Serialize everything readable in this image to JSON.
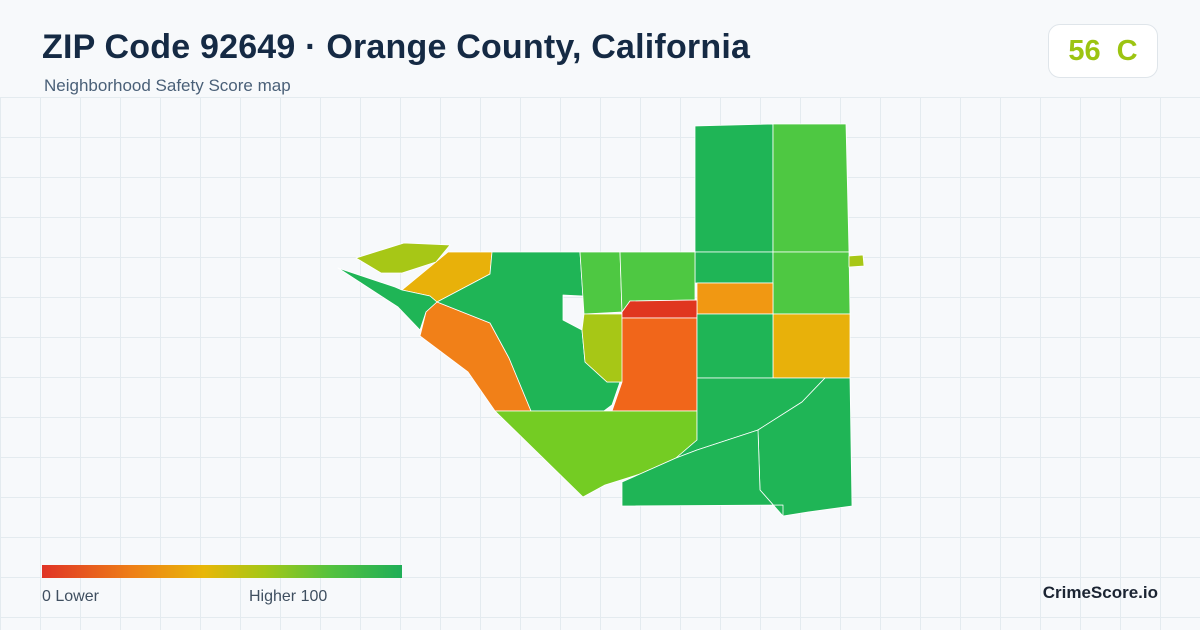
{
  "header": {
    "title": "ZIP Code 92649 · Orange County, California",
    "subtitle": "Neighborhood Safety Score map"
  },
  "score": {
    "value": "56",
    "grade": "C",
    "color": "#9cc411"
  },
  "legend": {
    "min_label": "0  Lower",
    "max_label": "Higher  100",
    "colors": [
      "#e03426",
      "#ee7f17",
      "#e8b708",
      "#a4c716",
      "#54c23e",
      "#1fae57"
    ]
  },
  "brand": "CrimeScore.io",
  "map": {
    "regions": [
      {
        "name": "region-a1",
        "color": "#1fb556"
      },
      {
        "name": "region-a2",
        "color": "#4ec842"
      },
      {
        "name": "region-b1",
        "color": "#1fb556"
      },
      {
        "name": "region-b2",
        "color": "#4ec842"
      },
      {
        "name": "region-c1",
        "color": "#f19812"
      },
      {
        "name": "region-c2",
        "color": "#e8b10a"
      },
      {
        "name": "region-d1",
        "color": "#a7c716"
      },
      {
        "name": "region-d2",
        "color": "#e8b10a"
      },
      {
        "name": "region-d3",
        "color": "#1fb556"
      },
      {
        "name": "region-d4",
        "color": "#74cc23"
      },
      {
        "name": "region-d5",
        "color": "#4ec842"
      },
      {
        "name": "region-e1",
        "color": "#e0361f"
      },
      {
        "name": "region-e2",
        "color": "#f1661a"
      },
      {
        "name": "region-e3",
        "color": "#4ec842"
      },
      {
        "name": "region-f1",
        "color": "#a7c716"
      },
      {
        "name": "region-f2",
        "color": "#1fb556"
      },
      {
        "name": "region-f3",
        "color": "#f18018"
      },
      {
        "name": "region-f4",
        "color": "#1fb556"
      },
      {
        "name": "region-f5",
        "color": "#1fb556"
      },
      {
        "name": "region-g1",
        "color": "#74cc23"
      },
      {
        "name": "region-g2",
        "color": "#a7c716"
      },
      {
        "name": "region-h1",
        "color": "#1fb556"
      },
      {
        "name": "region-h2",
        "color": "#1fb556"
      }
    ]
  }
}
